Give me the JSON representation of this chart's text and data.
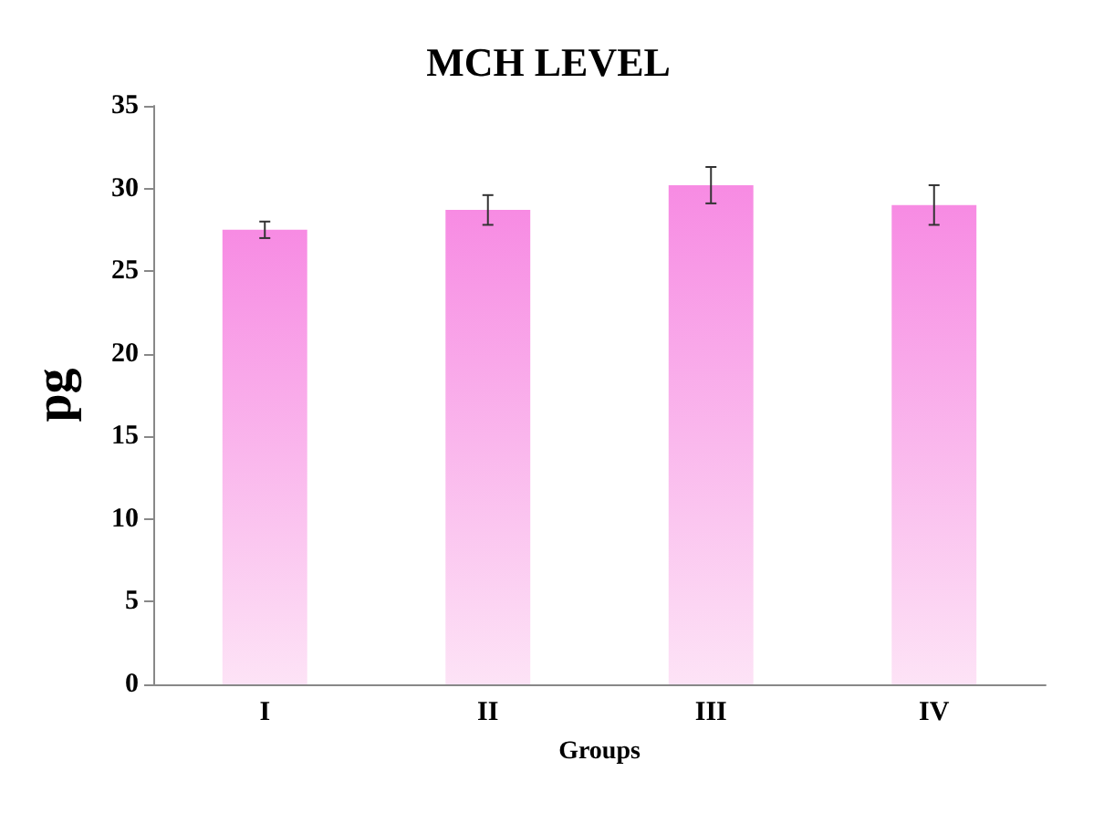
{
  "chart_data": {
    "type": "bar",
    "title": "MCH LEVEL",
    "xlabel": "Groups",
    "ylabel": "pg",
    "categories": [
      "I",
      "II",
      "III",
      "IV"
    ],
    "values": [
      27.5,
      28.7,
      30.2,
      29.0
    ],
    "errors": [
      0.5,
      0.9,
      1.1,
      1.2
    ],
    "color": "#f78be3",
    "ylim": [
      0,
      35
    ],
    "yticks": [
      0,
      5,
      10,
      15,
      20,
      25,
      30,
      35
    ],
    "grid": false
  }
}
